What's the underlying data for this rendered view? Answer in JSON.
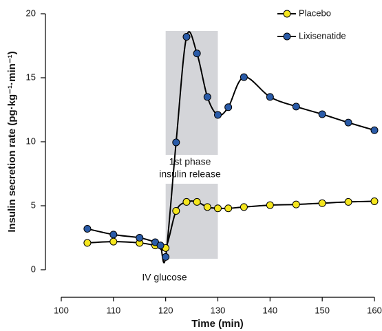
{
  "chart_data": {
    "type": "line",
    "xlabel": "Time (min)",
    "ylabel": "Insulin secretion rate (pg·kg⁻¹·min⁻¹)",
    "xlim": [
      100,
      160
    ],
    "xticks": [
      100,
      110,
      120,
      130,
      140,
      150,
      160
    ],
    "ylim": [
      0,
      20
    ],
    "yticks": [
      0,
      5,
      10,
      15,
      20
    ],
    "highlight_xrange": [
      120,
      130
    ],
    "legend": "upper right",
    "annotations": [
      "1st phase",
      "insulin release",
      "IV glucose"
    ],
    "series": [
      {
        "name": "Placebo",
        "color": "#f5e61e",
        "x": [
          105,
          110,
          115,
          118,
          120,
          122,
          124,
          126,
          128,
          130,
          132,
          135,
          140,
          145,
          150,
          155,
          160
        ],
        "values": [
          2.1,
          2.2,
          2.1,
          1.9,
          1.7,
          4.6,
          5.3,
          5.3,
          4.9,
          4.8,
          4.8,
          4.9,
          5.05,
          5.1,
          5.2,
          5.3,
          5.35
        ]
      },
      {
        "name": "Lixisenatide",
        "color": "#2a5ba8",
        "x": [
          105,
          110,
          115,
          118,
          119,
          120,
          122,
          124,
          126,
          128,
          130,
          132,
          135,
          140,
          145,
          150,
          155,
          160
        ],
        "values": [
          3.2,
          2.75,
          2.5,
          2.15,
          1.9,
          1.0,
          9.95,
          18.2,
          16.9,
          13.5,
          12.1,
          12.7,
          15.05,
          13.5,
          12.75,
          12.15,
          11.5,
          10.9
        ]
      }
    ]
  }
}
